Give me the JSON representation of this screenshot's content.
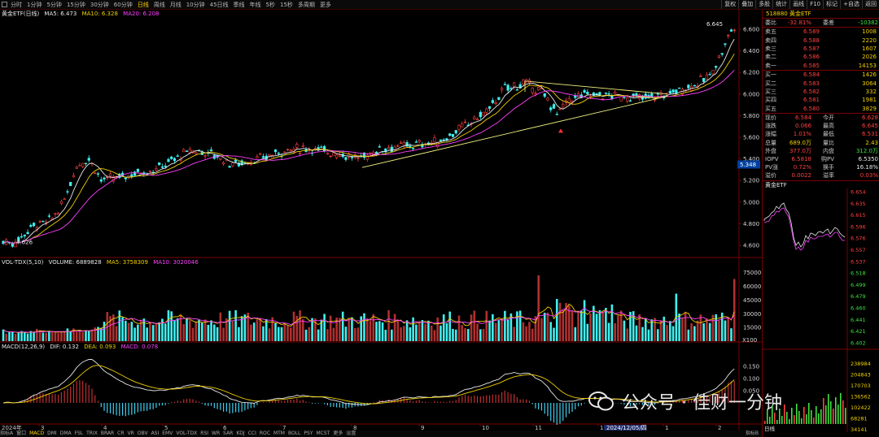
{
  "toolbar": {
    "periods": [
      "分时",
      "1分钟",
      "5分钟",
      "15分钟",
      "30分钟",
      "60分钟",
      "日线",
      "周线",
      "月线",
      "10分钟",
      "45日线",
      "季线",
      "年线",
      "5秒",
      "15秒",
      "多周期",
      "更多"
    ],
    "active_period": "日线",
    "tools": [
      "复权",
      "叠加",
      "多股",
      "统计",
      "画线",
      "F10",
      "标记",
      "+自选",
      "返回"
    ]
  },
  "main_chart": {
    "legend": {
      "name": "黄金ETF(日线)",
      "ma5": "MA5: 6.473",
      "ma10": "MA10: 6.328",
      "ma20": "MA20: 6.208"
    },
    "y_ticks": [
      "6.600",
      "6.400",
      "6.200",
      "6.000",
      "5.800",
      "5.600",
      "5.400",
      "5.200",
      "5.000",
      "4.800",
      "4.600"
    ],
    "price_marker": "5.348",
    "high_label": "6.645",
    "low_label": "4.626"
  },
  "volume_chart": {
    "legend": {
      "name": "VOL-TDX(5,10)",
      "volume": "VOLUME: 6889828",
      "ma5": "MA5: 3758309",
      "ma10": "MA10: 3020046"
    },
    "y_ticks": [
      "75000",
      "60000",
      "45000",
      "30000",
      "15000"
    ],
    "unit": "X100"
  },
  "macd_chart": {
    "legend": {
      "name": "MACD(12,26,9)",
      "dif": "DIF: 0.132",
      "dea": "DEA: 0.093",
      "macd": "MACD: 0.078"
    },
    "y_ticks": [
      "0.150",
      "0.100",
      "0.050"
    ]
  },
  "x_axis": {
    "year": "2024年",
    "months": [
      "3",
      "4",
      "5",
      "6",
      "7",
      "8",
      "9",
      "10",
      "11",
      "12",
      "1",
      "2"
    ],
    "highlight_date": "2024/12/05/四"
  },
  "bottom_tabs": [
    "指标A",
    "窗口",
    "MACD",
    "DMI",
    "DMA",
    "FSL",
    "TRIX",
    "BRAR",
    "CR",
    "VR",
    "OBV",
    "ASI",
    "EMV",
    "VOL-TDX",
    "RSI",
    "WR",
    "SAR",
    "KDJ",
    "CCI",
    "ROC",
    "MTM",
    "BOLL",
    "PSY",
    "MCST",
    "更多",
    "设置"
  ],
  "bottom_tabs_right": "指标B",
  "quote": {
    "code": "518880",
    "name": "黄金ETF",
    "wei_bi_label": "委比",
    "wei_bi": "-32.81%",
    "wei_cha_label": "委差",
    "wei_cha": "-10382",
    "sells": [
      {
        "label": "卖五",
        "price": "6.589",
        "vol": "1008"
      },
      {
        "label": "卖四",
        "price": "6.588",
        "vol": "2220"
      },
      {
        "label": "卖三",
        "price": "6.587",
        "vol": "1607"
      },
      {
        "label": "卖二",
        "price": "6.586",
        "vol": "2026"
      },
      {
        "label": "卖一",
        "price": "6.585",
        "vol": "14153"
      }
    ],
    "buys": [
      {
        "label": "买一",
        "price": "6.584",
        "vol": "1426"
      },
      {
        "label": "买二",
        "price": "6.583",
        "vol": "3064"
      },
      {
        "label": "买三",
        "price": "6.582",
        "vol": "332"
      },
      {
        "label": "买四",
        "price": "6.581",
        "vol": "1981"
      },
      {
        "label": "买五",
        "price": "6.580",
        "vol": "3829"
      }
    ],
    "stats": [
      {
        "l1": "现价",
        "v1": "6.584",
        "c1": "up",
        "l2": "今开",
        "v2": "6.628",
        "c2": "up"
      },
      {
        "l1": "涨跌",
        "v1": "0.066",
        "c1": "up",
        "l2": "最高",
        "v2": "6.645",
        "c2": "up"
      },
      {
        "l1": "涨幅",
        "v1": "1.01%",
        "c1": "up",
        "l2": "最低",
        "v2": "6.531",
        "c2": "up"
      },
      {
        "l1": "总量",
        "v1": "689.0万",
        "c1": "yel",
        "l2": "量比",
        "v2": "2.43",
        "c2": "yel"
      },
      {
        "l1": "外盘",
        "v1": "377.0万",
        "c1": "up",
        "l2": "内盘",
        "v2": "312.0万",
        "c2": "dn"
      },
      {
        "l1": "IOPV",
        "v1": "6.5818",
        "c1": "up",
        "l2": "购PV",
        "v2": "6.5350",
        "c2": "wht"
      },
      {
        "l1": "PV涨",
        "v1": "0.72%",
        "c1": "up",
        "l2": "换手",
        "v2": "16.18%",
        "c2": "wht"
      },
      {
        "l1": "溢价",
        "v1": "0.0022",
        "c1": "up",
        "l2": "溢率",
        "v2": "0.03%",
        "c2": "up"
      }
    ]
  },
  "mini_chart": {
    "title": "黄金ETF",
    "price_ticks": [
      "6.654",
      "6.635",
      "6.615",
      "6.596",
      "6.576",
      "6.557",
      "6.537",
      "6.518",
      "6.499",
      "6.479",
      "6.460",
      "6.441",
      "6.421",
      "6.402"
    ],
    "vol_ticks": [
      "238984",
      "204843",
      "170703",
      "136562",
      "102422",
      "68281",
      "34141"
    ],
    "footer": "日线"
  },
  "watermark": "公众号 · 佳财一分钟"
}
